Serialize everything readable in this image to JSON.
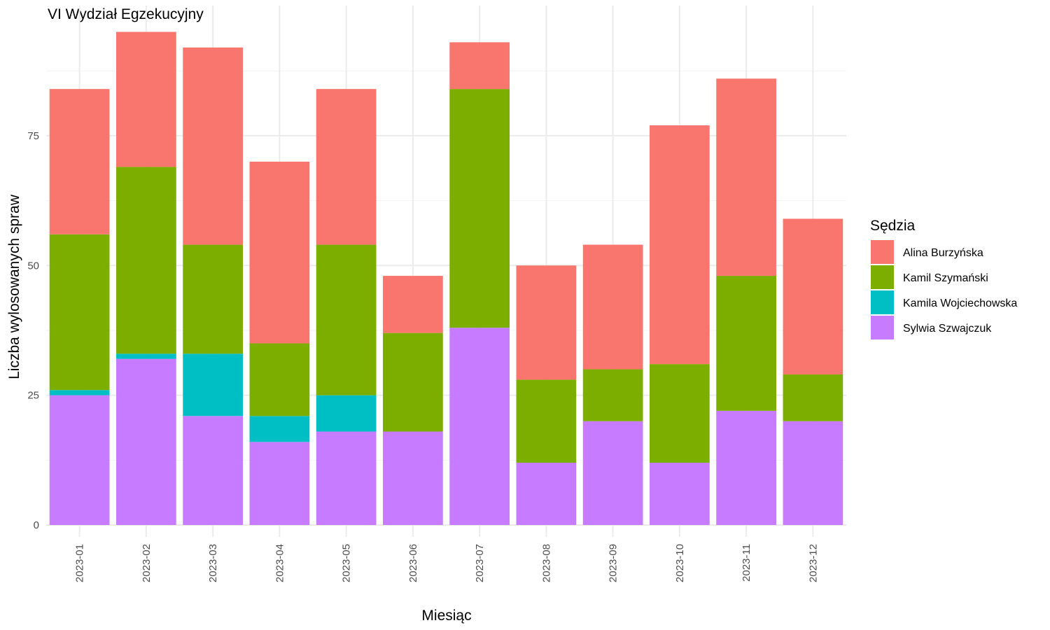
{
  "chart_data": {
    "type": "bar",
    "stacked": true,
    "title": "VI Wydział Egzekucyjny",
    "xlabel": "Miesiąc",
    "ylabel": "Liczba wylosowanych spraw",
    "ylim": [
      0,
      97
    ],
    "yticks": [
      0,
      25,
      50,
      75
    ],
    "grid": true,
    "legend": {
      "title": "Sędzia",
      "position": "right"
    },
    "categories": [
      "2023-01",
      "2023-02",
      "2023-03",
      "2023-04",
      "2023-05",
      "2023-06",
      "2023-07",
      "2023-08",
      "2023-09",
      "2023-10",
      "2023-11",
      "2023-12"
    ],
    "series": [
      {
        "name": "Sylwia Szwajczuk",
        "color": "#C77CFF",
        "values": [
          25,
          32,
          21,
          16,
          18,
          18,
          38,
          12,
          20,
          12,
          22,
          20
        ]
      },
      {
        "name": "Kamila Wojciechowska",
        "color": "#00BFC4",
        "values": [
          1,
          1,
          12,
          5,
          7,
          0,
          0,
          0,
          0,
          0,
          0,
          0
        ]
      },
      {
        "name": "Kamil Szymański",
        "color": "#7CAE00",
        "values": [
          30,
          36,
          21,
          14,
          29,
          19,
          46,
          16,
          10,
          19,
          26,
          9
        ]
      },
      {
        "name": "Alina Burzyńska",
        "color": "#F8766D",
        "values": [
          28,
          26,
          38,
          35,
          30,
          11,
          9,
          22,
          24,
          46,
          38,
          30
        ]
      }
    ],
    "legend_order": [
      "Alina Burzyńska",
      "Kamil Szymański",
      "Kamila Wojciechowska",
      "Sylwia Szwajczuk"
    ]
  }
}
